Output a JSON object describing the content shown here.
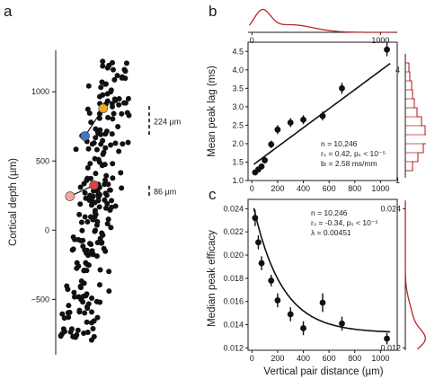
{
  "panels": [
    {
      "letter": "a",
      "chart_data": {
        "type": "scatter",
        "ylabel": "Cortical depth (µm)",
        "ylim": [
          -900,
          1300
        ],
        "yticks": [
          "1000",
          "500",
          "0",
          "−500"
        ],
        "ytick_values": [
          1000,
          500,
          0,
          -500
        ],
        "scale_bars": [
          {
            "label": "224 µm",
            "length": 224,
            "at": 785
          },
          {
            "label": "86 µm",
            "length": 86,
            "at": 278
          }
        ],
        "highlighted_cells": [
          {
            "color": "#f2a81d",
            "x": 0.58,
            "y": 880
          },
          {
            "color": "#3b78c4",
            "x": 0.34,
            "y": 680
          },
          {
            "color": "#d8454a",
            "x": 0.46,
            "y": 325
          },
          {
            "color": "#f1a8a0",
            "x": 0.14,
            "y": 245
          }
        ],
        "points": []
      }
    },
    {
      "letter": "b",
      "chart_data": {
        "type": "scatter",
        "ylabel": "Mean peak lag (ms)",
        "xlim": [
          -30,
          1130
        ],
        "ylim": [
          1.0,
          4.75
        ],
        "xticks": [
          "0",
          "200",
          "400",
          "600",
          "800",
          "1000"
        ],
        "xtick_values": [
          0,
          200,
          400,
          600,
          800,
          1000
        ],
        "yticks": [
          "1.0",
          "1.5",
          "2.0",
          "2.5",
          "3.0",
          "3.5",
          "4.0",
          "4.5"
        ],
        "ytick_values": [
          1.0,
          1.5,
          2.0,
          2.5,
          3.0,
          3.5,
          4.0,
          4.5
        ],
        "x": [
          25,
          50,
          75,
          100,
          150,
          200,
          300,
          400,
          550,
          700,
          1050
        ],
        "y": [
          1.22,
          1.3,
          1.38,
          1.55,
          1.98,
          2.38,
          2.57,
          2.65,
          2.75,
          3.5,
          4.55
        ],
        "yerr": [
          0.07,
          0.07,
          0.08,
          0.09,
          0.1,
          0.12,
          0.12,
          0.12,
          0.12,
          0.15,
          0.18
        ],
        "fit": {
          "type": "linear",
          "slope": 0.00258,
          "intercept": 1.4
        },
        "annotations": [
          "n = 10,246",
          "rₛ = 0.42, pₛ < 10⁻⁵",
          "bₗ = 2.58 ms/mm"
        ],
        "top_marginal": {
          "xticks": [
            "0",
            "1000"
          ],
          "xtick_values": [
            0,
            1000
          ],
          "color": "#b5262d"
        },
        "right_marginal": {
          "ticks": [
            "4",
            "1"
          ],
          "tick_values": [
            4,
            1
          ],
          "color": "#b5262d"
        }
      }
    },
    {
      "letter": "c",
      "chart_data": {
        "type": "scatter",
        "xlabel": "Vertical pair distance (µm)",
        "ylabel": "Median peak efficacy",
        "xlim": [
          -30,
          1130
        ],
        "ylim": [
          0.0118,
          0.0248
        ],
        "xticks": [
          "0",
          "200",
          "400",
          "600",
          "800",
          "1000"
        ],
        "xtick_values": [
          0,
          200,
          400,
          600,
          800,
          1000
        ],
        "yticks": [
          "0.012",
          "0.014",
          "0.016",
          "0.018",
          "0.020",
          "0.022",
          "0.024"
        ],
        "ytick_values": [
          0.012,
          0.014,
          0.016,
          0.018,
          0.02,
          0.022,
          0.024
        ],
        "x": [
          25,
          50,
          75,
          150,
          200,
          300,
          400,
          550,
          700,
          1050
        ],
        "y": [
          0.0232,
          0.0211,
          0.0193,
          0.0178,
          0.0161,
          0.0149,
          0.0137,
          0.0159,
          0.0141,
          0.0128
        ],
        "yerr": [
          0.0007,
          0.0006,
          0.0006,
          0.0005,
          0.0006,
          0.0006,
          0.0006,
          0.0008,
          0.0006,
          0.0005
        ],
        "fit": {
          "type": "exponential",
          "lambda": 0.00451,
          "asymptote": 0.0133,
          "amplitude": 0.0115
        },
        "annotations": [
          "n = 10,246",
          "rₛ = -0.34, pₛ < 10⁻⁵",
          "λ = 0.00451"
        ],
        "right_marginal": {
          "ticks": [
            "0.024",
            "0.012"
          ],
          "tick_values": [
            0.024,
            0.012
          ],
          "color": "#b5262d"
        }
      }
    }
  ]
}
